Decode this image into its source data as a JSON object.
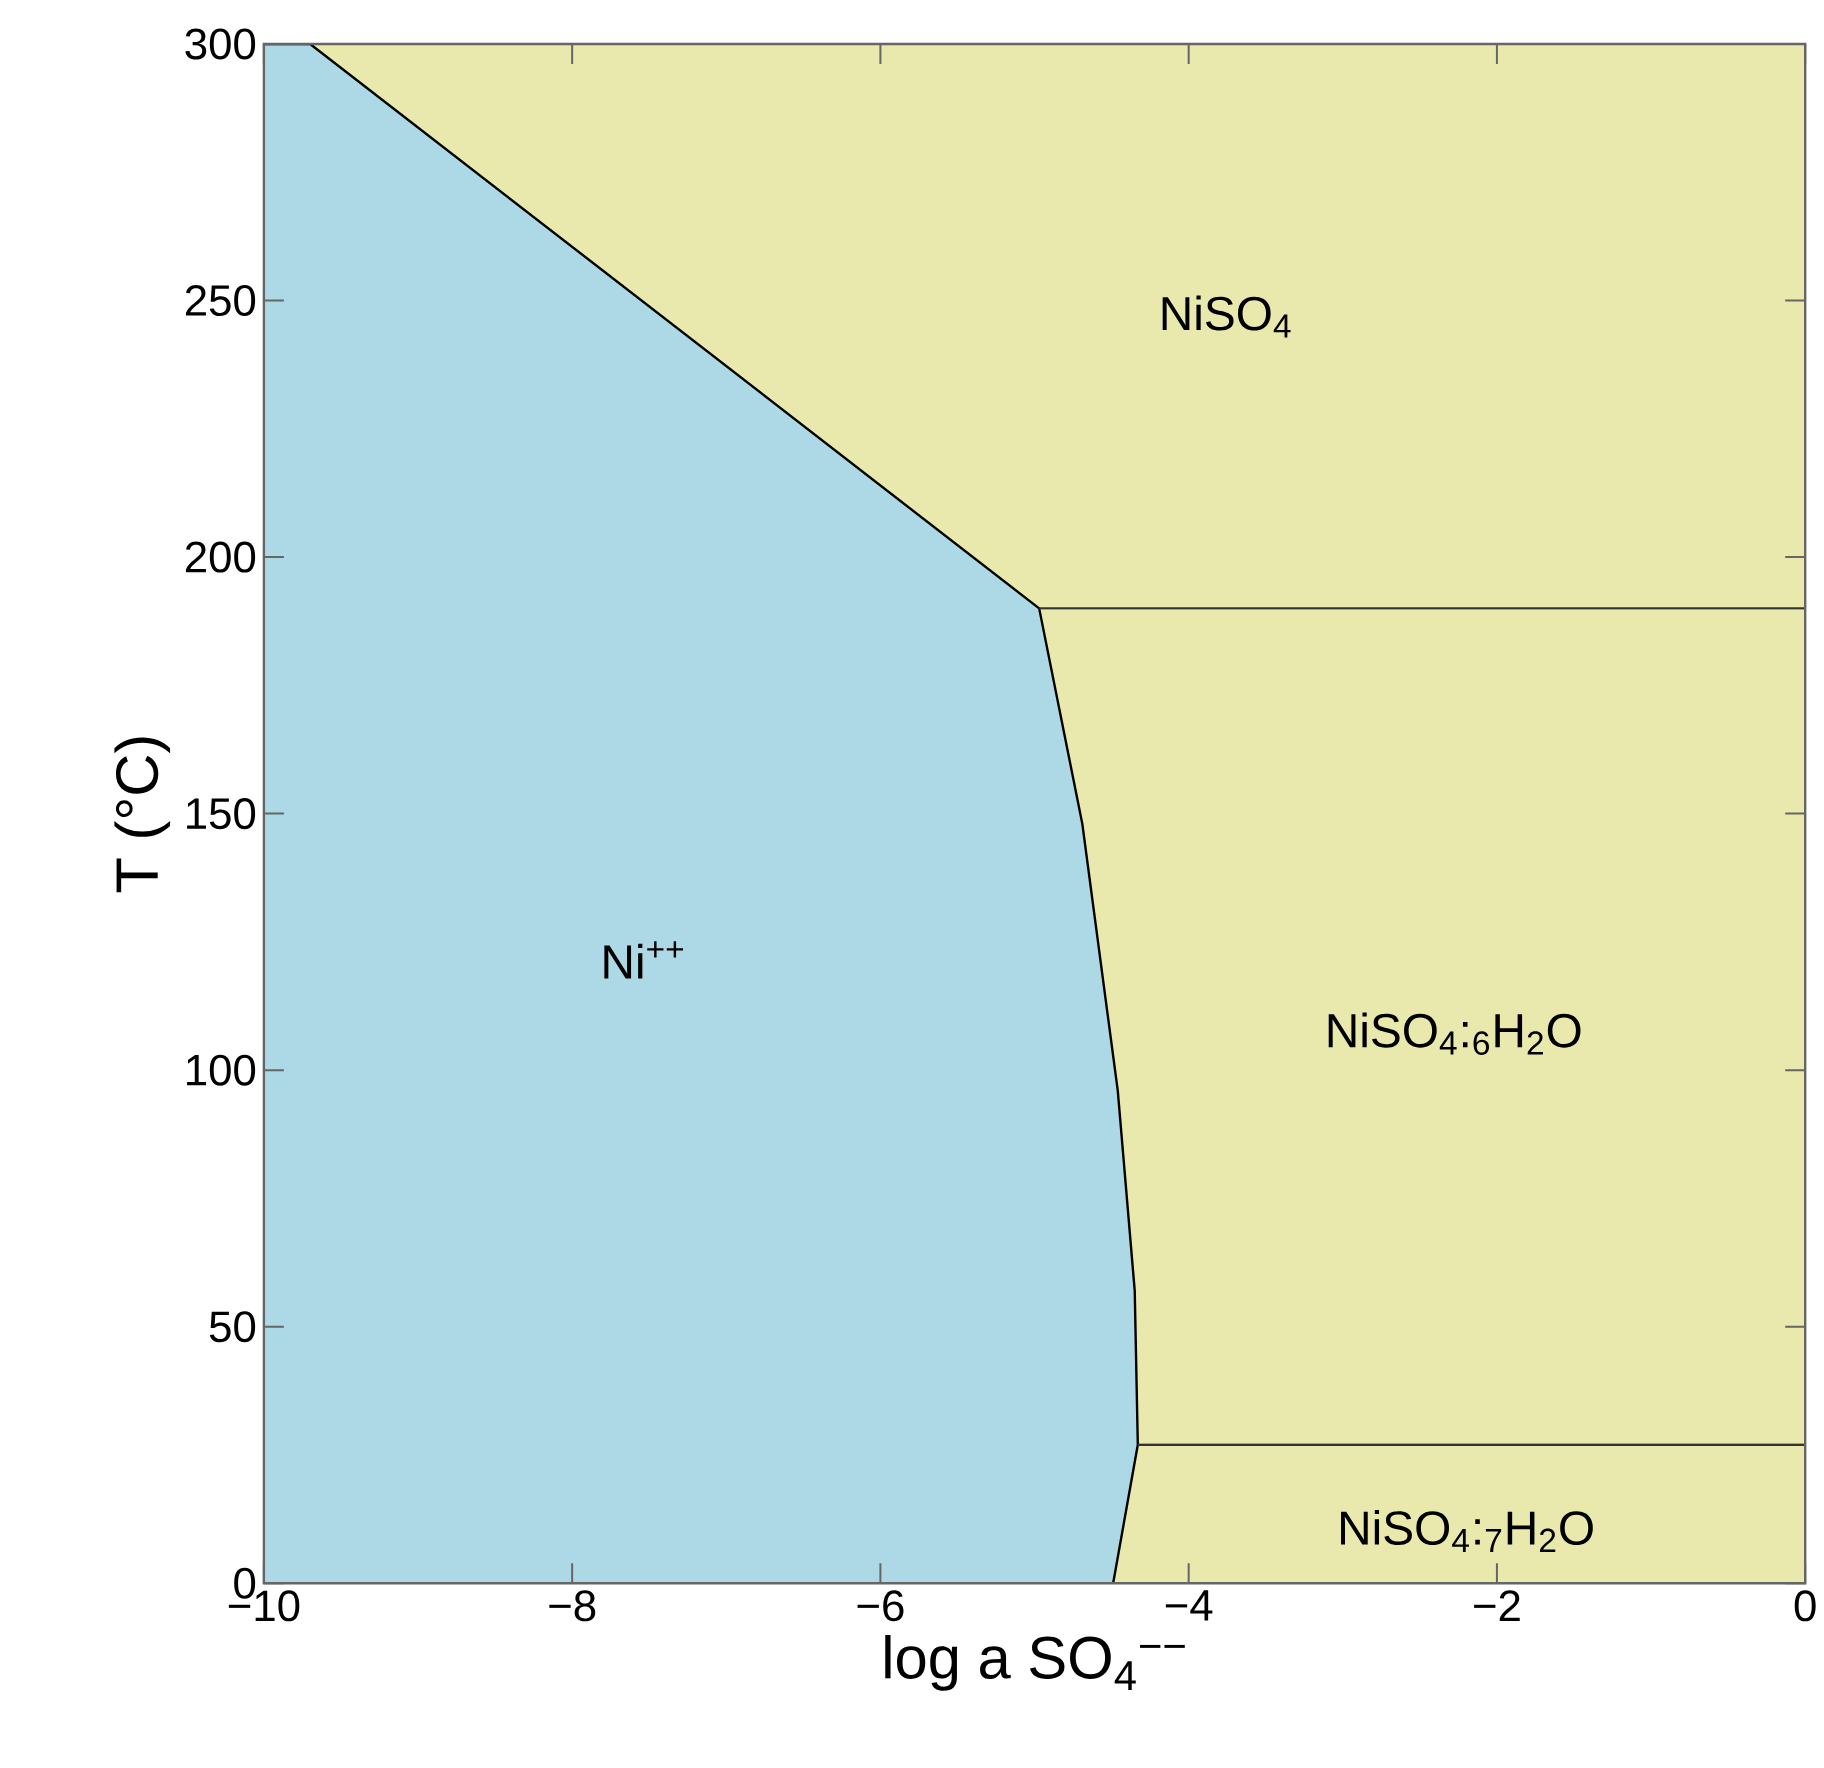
{
  "chart_data": {
    "type": "area",
    "xlabel": "log a SO$_{4}$$^{−−}$",
    "ylabel": "T (°C)",
    "xlim": [
      -10,
      0
    ],
    "ylim": [
      0,
      300
    ],
    "xticks": [
      {
        "value": -10,
        "label": "−10"
      },
      {
        "value": -8,
        "label": "−8"
      },
      {
        "value": -6,
        "label": "−6"
      },
      {
        "value": -4,
        "label": "−4"
      },
      {
        "value": -2,
        "label": "−2"
      },
      0
    ],
    "yticks": [
      0,
      50,
      100,
      150,
      200,
      250,
      300
    ],
    "series": [
      {
        "color": "#add8e6",
        "x": [
          -10,
          -9.7,
          -4.97,
          -4.69,
          -4.46,
          -4.35,
          -4.33,
          -4.49,
          -10
        ],
        "values": [
          300,
          300,
          190,
          148,
          96,
          57,
          27,
          0,
          0
        ]
      },
      {
        "type": "line",
        "color": "#333333",
        "x": [
          -4.97,
          0
        ],
        "values": [
          190,
          190
        ]
      },
      {
        "type": "line",
        "color": "#333333",
        "x": [
          -4.33,
          0
        ],
        "values": [
          27,
          27
        ]
      }
    ],
    "bands": [
      {
        "axis": "y",
        "from": 0,
        "to": 300,
        "color": "#e9e8ad"
      }
    ],
    "annotations": [
      "NiSO$_{4}$",
      "Ni$^{++}$",
      "NiSO$_{4}$:$_{6}$H$_{2}$O",
      "NiSO$_{4}$:$_{7}$H$_{2}$O"
    ],
    "grid": false
  }
}
